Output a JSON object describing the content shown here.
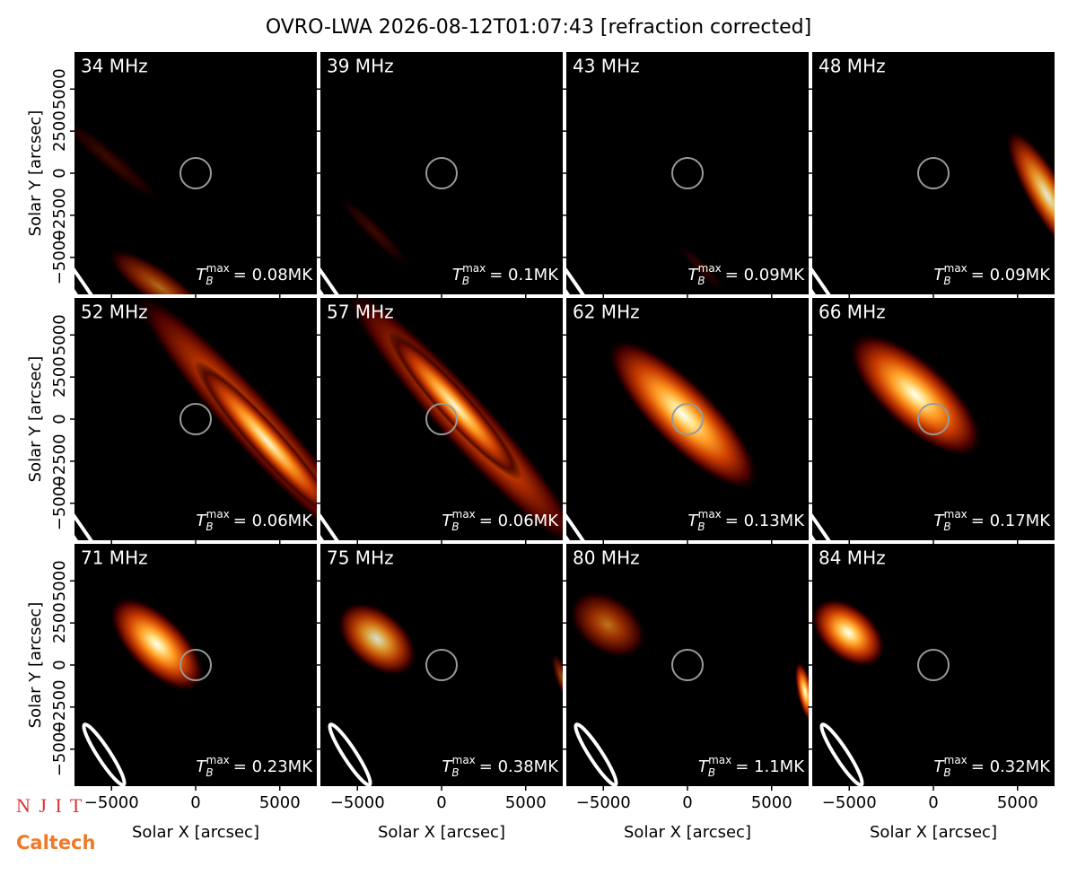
{
  "chart_data": {
    "type": "image_grid",
    "title": "OVRO-LWA 2026-08-12T01:07:43 [refraction corrected]",
    "xlabel": "Solar X [arcsec]",
    "ylabel": "Solar Y [arcsec]",
    "xlim": [
      -7200,
      7200
    ],
    "ylim": [
      -7200,
      7200
    ],
    "xticks": [
      {
        "value": -5000,
        "label": "−5000"
      },
      0,
      5000
    ],
    "yticks": [
      {
        "value": -5000,
        "label": "−5000"
      },
      {
        "value": -2500,
        "label": "−2500"
      },
      0,
      2500,
      5000
    ],
    "tb_symbol": "T",
    "tb_sub": "B",
    "tb_sup": "max",
    "panels": [
      {
        "label": "34 MHz",
        "tb": "= 0.08MK"
      },
      {
        "label": "39 MHz",
        "tb": "= 0.1MK"
      },
      {
        "label": "43 MHz",
        "tb": "= 0.09MK"
      },
      {
        "label": "48 MHz",
        "tb": "= 0.09MK"
      },
      {
        "label": "52 MHz",
        "tb": "= 0.06MK"
      },
      {
        "label": "57 MHz",
        "tb": "= 0.06MK"
      },
      {
        "label": "62 MHz",
        "tb": "= 0.13MK"
      },
      {
        "label": "66 MHz",
        "tb": "= 0.17MK"
      },
      {
        "label": "71 MHz",
        "tb": "= 0.23MK"
      },
      {
        "label": "75 MHz",
        "tb": "= 0.38MK"
      },
      {
        "label": "80 MHz",
        "tb": "= 1.1MK"
      },
      {
        "label": "84 MHz",
        "tb": "= 0.32MK"
      }
    ],
    "logos": [
      "N J I T",
      "Caltech"
    ]
  }
}
